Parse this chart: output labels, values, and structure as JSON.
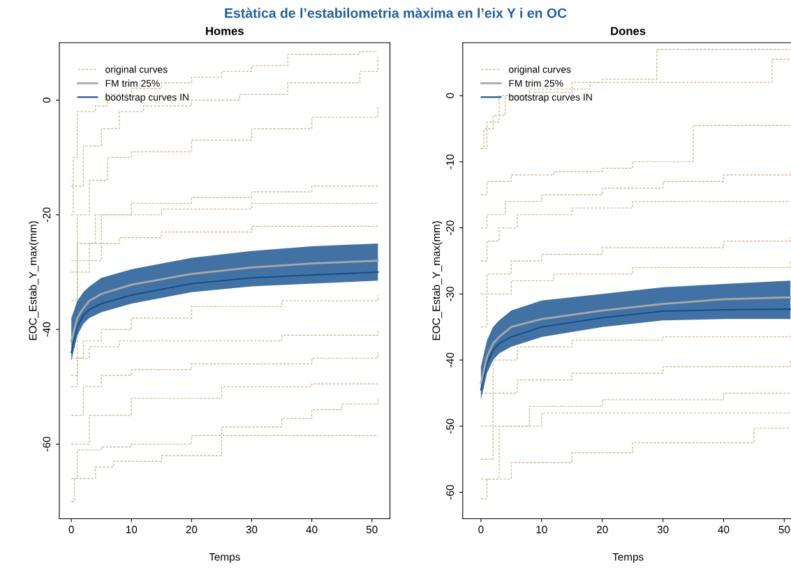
{
  "chart_data": [
    {
      "type": "line",
      "title": "Estàtica de l’estabilometria màxima en l’eix Y i en OC",
      "subtitle": "Homes",
      "xlabel": "Temps",
      "ylabel": "EOC_Estab_Y_max(mm)",
      "xlim": [
        -2,
        53
      ],
      "xticks": [
        0,
        10,
        20,
        30,
        40,
        50
      ],
      "ylim": [
        -73,
        10
      ],
      "yticks": [
        -60,
        -40,
        -20,
        0
      ],
      "grid": false,
      "legend": "top left",
      "series": [
        {
          "name": "original curves",
          "type": "step",
          "line_style": "dashed",
          "color": "#d2bc96",
          "x": [
            0,
            0.3,
            1,
            2,
            4,
            6,
            10,
            15,
            20,
            25,
            30,
            36,
            45,
            48,
            51
          ],
          "values": [
            -20,
            -10,
            -2,
            -2,
            -1,
            1,
            2,
            3,
            4,
            5,
            6,
            8,
            8,
            8.5,
            8.5
          ]
        },
        {
          "type": "step",
          "line_style": "dashed",
          "color": "#d2bc96",
          "x": [
            0,
            2,
            5,
            8,
            12,
            20,
            28,
            36,
            48,
            51
          ],
          "values": [
            -15,
            -8,
            -5,
            -2,
            -1,
            0,
            1,
            3,
            5,
            7.5
          ]
        },
        {
          "type": "step",
          "line_style": "dashed",
          "color": "#d2bc96",
          "x": [
            0,
            1,
            3,
            6,
            10,
            20,
            30,
            40,
            51
          ],
          "values": [
            -30,
            -20,
            -14,
            -10,
            -9,
            -7,
            -5,
            -3,
            -1
          ]
        },
        {
          "type": "step",
          "line_style": "dashed",
          "color": "#d2bc96",
          "x": [
            0,
            1,
            4,
            10,
            20,
            30,
            40,
            51
          ],
          "values": [
            -35,
            -25,
            -20,
            -18,
            -17,
            -16,
            -15,
            -14.8
          ]
        },
        {
          "type": "step",
          "line_style": "dashed",
          "color": "#d2bc96",
          "x": [
            0,
            1,
            3,
            8,
            15,
            30,
            51
          ],
          "values": [
            -48,
            -30,
            -25,
            -24,
            -23,
            -22,
            -22
          ]
        },
        {
          "type": "step",
          "line_style": "dashed",
          "color": "#d2bc96",
          "x": [
            0,
            5,
            15,
            30,
            51
          ],
          "values": [
            -28,
            -20,
            -19,
            -18,
            -18
          ]
        },
        {
          "type": "step",
          "line_style": "dashed",
          "color": "#d2bc96",
          "x": [
            0,
            2,
            5,
            10,
            20,
            35,
            51
          ],
          "values": [
            -45,
            -42,
            -40,
            -38,
            -36,
            -35,
            -34
          ]
        },
        {
          "type": "step",
          "line_style": "dashed",
          "color": "#d2bc96",
          "x": [
            0,
            1,
            3,
            8,
            20,
            35,
            51
          ],
          "values": [
            -50,
            -45,
            -43,
            -42,
            -42,
            -41,
            -40
          ]
        },
        {
          "type": "step",
          "line_style": "dashed",
          "color": "#d2bc96",
          "x": [
            0,
            2,
            5,
            10,
            20,
            40,
            51
          ],
          "values": [
            -55,
            -50,
            -48,
            -47,
            -46,
            -45,
            -44
          ]
        },
        {
          "type": "step",
          "line_style": "dashed",
          "color": "#d2bc96",
          "x": [
            0,
            3,
            10,
            25,
            40,
            51
          ],
          "values": [
            -60,
            -55,
            -52,
            -50,
            -49.5,
            -49.5
          ]
        },
        {
          "type": "step",
          "line_style": "dashed",
          "color": "#d2bc96",
          "x": [
            0,
            1,
            5,
            10,
            20,
            25,
            30,
            35,
            40,
            45,
            51
          ],
          "values": [
            -66,
            -61,
            -60.5,
            -60,
            -58.5,
            -57,
            -57,
            -55.5,
            -54,
            -53,
            -52
          ]
        },
        {
          "type": "step",
          "line_style": "dashed",
          "color": "#d2bc96",
          "x": [
            0,
            0.5,
            4,
            7,
            15,
            25,
            51
          ],
          "values": [
            -70,
            -66,
            -64,
            -63,
            -62,
            -58.5,
            -58.5
          ]
        },
        {
          "name": "bootstrap curves IN",
          "color": "#134f8c",
          "x": [
            0,
            1,
            2,
            3,
            5,
            10,
            20,
            30,
            40,
            51
          ],
          "values": [
            -44,
            -39.5,
            -37.5,
            -36.5,
            -35.5,
            -34,
            -32,
            -31,
            -30.5,
            -30
          ],
          "lower": [
            -45.5,
            -41,
            -39,
            -38,
            -37,
            -35.5,
            -33.5,
            -32.5,
            -32,
            -31.5
          ],
          "upper": [
            -38,
            -35,
            -33.5,
            -32.5,
            -31,
            -29.5,
            -27.5,
            -26.3,
            -25.5,
            -25
          ]
        },
        {
          "name": "FM trim 25%",
          "line_style": "solid",
          "color": "#a8a8a8",
          "x": [
            0,
            1,
            2,
            3,
            5,
            10,
            20,
            30,
            40,
            51
          ],
          "values": [
            -42,
            -38,
            -36.3,
            -35,
            -33.8,
            -32.2,
            -30.3,
            -29.2,
            -28.5,
            -28
          ]
        }
      ]
    },
    {
      "type": "line",
      "subtitle": "Dones",
      "xlabel": "Temps",
      "ylabel": "EOC_Estab_Y_max(mm)",
      "xlim": [
        -3,
        51.5
      ],
      "xticks": [
        0,
        10,
        20,
        30,
        40,
        50
      ],
      "ylim": [
        -64,
        8
      ],
      "yticks": [
        -60,
        -50,
        -40,
        -30,
        -20,
        -10,
        0
      ],
      "grid": false,
      "legend": "top left",
      "series": [
        {
          "name": "original curves",
          "type": "step",
          "line_style": "dashed",
          "color": "#d2bc96",
          "x": [
            0,
            0.5,
            2,
            4,
            8,
            15,
            20,
            29,
            51
          ],
          "values": [
            -8,
            -5,
            -3,
            0,
            0.5,
            2,
            2.5,
            7,
            7
          ]
        },
        {
          "type": "step",
          "line_style": "dashed",
          "color": "#d2bc96",
          "x": [
            0,
            1,
            3,
            8,
            18,
            35,
            48,
            51
          ],
          "values": [
            -8,
            -4,
            0,
            1,
            2,
            2,
            5.5,
            5.5
          ]
        },
        {
          "type": "step",
          "line_style": "dashed",
          "color": "#d2bc96",
          "x": [
            0,
            1,
            5,
            12,
            20,
            25,
            35,
            51
          ],
          "values": [
            -15,
            -13,
            -12,
            -11.5,
            -11,
            -10,
            -4.5,
            -4.5
          ]
        },
        {
          "type": "step",
          "line_style": "dashed",
          "color": "#d2bc96",
          "x": [
            0,
            1,
            4,
            10,
            20,
            30,
            40,
            51
          ],
          "values": [
            -20,
            -18,
            -16,
            -15,
            -14,
            -13,
            -12,
            -11.5
          ]
        },
        {
          "type": "step",
          "line_style": "dashed",
          "color": "#d2bc96",
          "x": [
            0,
            1,
            3,
            6,
            15,
            25,
            51
          ],
          "values": [
            -25,
            -22,
            -20,
            -18,
            -17,
            -16,
            -16
          ]
        },
        {
          "type": "step",
          "line_style": "dashed",
          "color": "#d2bc96",
          "x": [
            0,
            1,
            5,
            10,
            20,
            40,
            51
          ],
          "values": [
            -30,
            -27,
            -25,
            -24,
            -23,
            -22,
            -21.5
          ]
        },
        {
          "type": "step",
          "line_style": "dashed",
          "color": "#d2bc96",
          "x": [
            0,
            1,
            5,
            12,
            25,
            51
          ],
          "values": [
            -35,
            -30,
            -28,
            -27,
            -26,
            -25
          ]
        },
        {
          "type": "step",
          "line_style": "dashed",
          "color": "#d2bc96",
          "x": [
            0,
            2,
            6,
            15,
            30,
            51
          ],
          "values": [
            -45,
            -40,
            -38,
            -37,
            -36.5,
            -36
          ]
        },
        {
          "type": "step",
          "line_style": "dashed",
          "color": "#d2bc96",
          "x": [
            0,
            2,
            6,
            15,
            30,
            51
          ],
          "values": [
            -50,
            -45,
            -43,
            -42,
            -41,
            -40
          ]
        },
        {
          "type": "step",
          "line_style": "dashed",
          "color": "#d2bc96",
          "x": [
            0,
            2,
            8,
            20,
            40,
            51
          ],
          "values": [
            -55,
            -50,
            -47,
            -46,
            -45,
            -45
          ]
        },
        {
          "type": "step",
          "line_style": "dashed",
          "color": "#d2bc96",
          "x": [
            0,
            1,
            5,
            15,
            25,
            45,
            51
          ],
          "values": [
            -61,
            -58,
            -55.5,
            -54,
            -52.5,
            -50.3,
            -50.3
          ]
        },
        {
          "type": "step",
          "line_style": "dashed",
          "color": "#d2bc96",
          "x": [
            0,
            3,
            10,
            25,
            51
          ],
          "values": [
            -58,
            -50,
            -48,
            -48,
            -48
          ]
        },
        {
          "name": "bootstrap curves IN",
          "color": "#134f8c",
          "x": [
            0,
            1,
            2,
            3,
            5,
            10,
            20,
            30,
            40,
            51
          ],
          "values": [
            -44.5,
            -40.5,
            -38.5,
            -37.5,
            -36.5,
            -35,
            -33.6,
            -32.6,
            -32.4,
            -32.3
          ],
          "lower": [
            -46,
            -42,
            -40,
            -39,
            -38,
            -36.5,
            -35,
            -34,
            -33.8,
            -33.8
          ],
          "upper": [
            -41,
            -37,
            -35,
            -34,
            -32.5,
            -31,
            -30,
            -29,
            -28.5,
            -28
          ]
        },
        {
          "name": "FM trim 25%",
          "line_style": "solid",
          "color": "#a8a8a8",
          "x": [
            0,
            1,
            2,
            3,
            5,
            10,
            20,
            30,
            40,
            51
          ],
          "values": [
            -43.5,
            -39.5,
            -37.5,
            -36.5,
            -35,
            -33.8,
            -32.5,
            -31.5,
            -30.8,
            -30.5
          ]
        }
      ]
    }
  ]
}
